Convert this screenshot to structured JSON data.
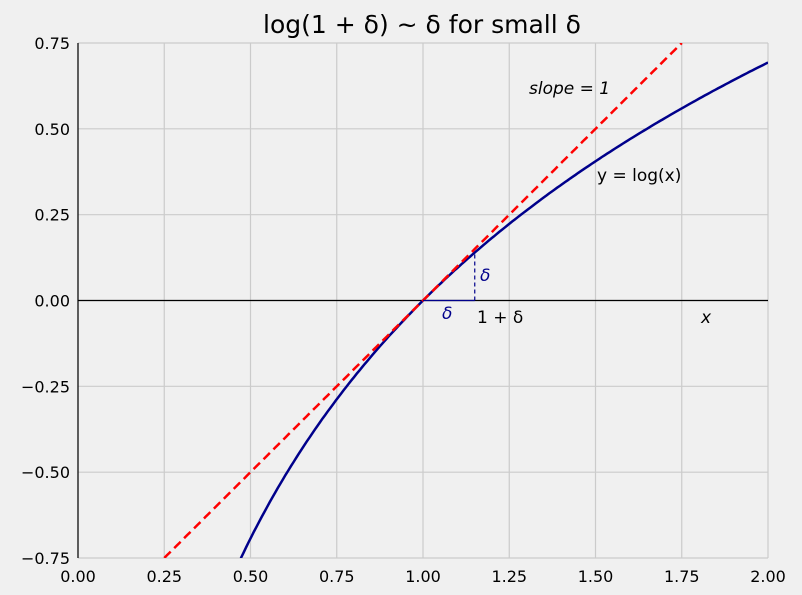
{
  "chart_data": {
    "type": "line",
    "title": "log(1 + δ) ~ δ for small δ",
    "xlabel": "",
    "ylabel": "",
    "xlim": [
      0,
      2
    ],
    "ylim": [
      -0.75,
      0.75
    ],
    "grid": true,
    "xticks": [
      "0.00",
      "0.25",
      "0.50",
      "0.75",
      "1.00",
      "1.25",
      "1.50",
      "1.75",
      "2.00"
    ],
    "yticks": [
      "−0.75",
      "−0.50",
      "−0.25",
      "0.00",
      "0.25",
      "0.50",
      "0.75"
    ],
    "series": [
      {
        "label": "y = log(x)",
        "function": "log(x)",
        "x_range": [
          0.472,
          2.0
        ],
        "color": "#00008b",
        "style": "solid"
      },
      {
        "label": "slope = 1",
        "function": "x - 1",
        "x_range": [
          0.25,
          1.75
        ],
        "color": "#ff0000",
        "style": "dashed"
      }
    ],
    "delta_triangle": {
      "x0": 1.0,
      "x1": 1.15,
      "y_top": 0.1398,
      "color": "#00008b"
    },
    "annotations": {
      "slope": "slope = 1",
      "curve": "y = log(x)",
      "delta_vertical": "δ",
      "delta_horizontal": "δ",
      "one_plus_delta": "1 + δ",
      "x_axis": "x"
    },
    "background": "#f0f0f0",
    "grid_color": "#cbcbcb"
  }
}
